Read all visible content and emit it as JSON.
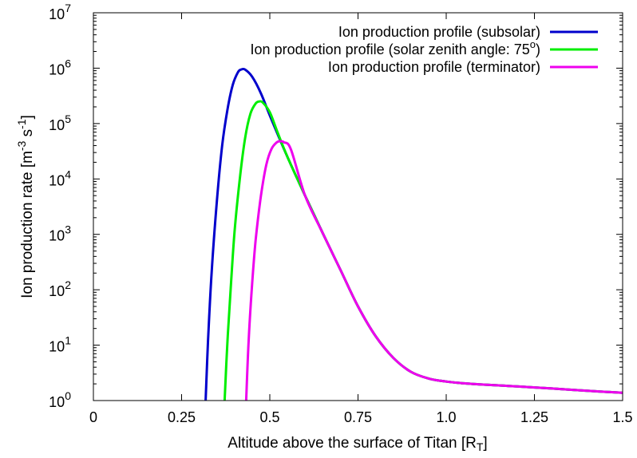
{
  "chart_data": {
    "type": "line",
    "title": "",
    "xlabel": "Altitude above the surface of Titan [R",
    "xlabel_sub": "T",
    "xlabel_end": "]",
    "ylabel": "Ion production rate [m",
    "ylabel_sup1": "-3",
    "ylabel_mid": " s",
    "ylabel_sup2": "-1",
    "ylabel_end": "]",
    "xlim": [
      0,
      1.5
    ],
    "ylim_log10": [
      0,
      7
    ],
    "y_scale": "log",
    "x_ticks": [
      {
        "value": 0,
        "label": "0"
      },
      {
        "value": 0.25,
        "label": "0.25"
      },
      {
        "value": 0.5,
        "label": "0.5"
      },
      {
        "value": 0.75,
        "label": "0.75"
      },
      {
        "value": 1.0,
        "label": "1.0"
      },
      {
        "value": 1.25,
        "label": "1.25"
      },
      {
        "value": 1.5,
        "label": "1.5"
      }
    ],
    "y_ticks": [
      {
        "exp": 0,
        "base": "10",
        "sup": "0"
      },
      {
        "exp": 1,
        "base": "10",
        "sup": "1"
      },
      {
        "exp": 2,
        "base": "10",
        "sup": "2"
      },
      {
        "exp": 3,
        "base": "10",
        "sup": "3"
      },
      {
        "exp": 4,
        "base": "10",
        "sup": "4"
      },
      {
        "exp": 5,
        "base": "10",
        "sup": "5"
      },
      {
        "exp": 6,
        "base": "10",
        "sup": "6"
      },
      {
        "exp": 7,
        "base": "10",
        "sup": "7"
      }
    ],
    "grid": false,
    "legend_position": "top-right",
    "series": [
      {
        "name": "Ion production profile (subsolar)",
        "color": "#0000cc",
        "x": [
          0.318,
          0.325,
          0.335,
          0.35,
          0.365,
          0.38,
          0.395,
          0.41,
          0.42,
          0.43,
          0.45,
          0.475,
          0.5,
          0.55,
          0.6,
          0.65,
          0.7,
          0.75,
          0.8,
          0.85,
          0.9,
          0.95,
          1.0,
          1.05,
          1.1,
          1.2,
          1.3,
          1.4,
          1.5
        ],
        "y": [
          1.0,
          12,
          200,
          4000,
          40000,
          180000,
          500000,
          850000,
          950000,
          940000,
          700000,
          350000,
          140000,
          25000,
          5000,
          1050,
          230,
          50,
          14.5,
          5.9,
          3.3,
          2.5,
          2.2,
          2.05,
          1.95,
          1.8,
          1.65,
          1.5,
          1.38
        ]
      },
      {
        "name": "Ion production profile (solar zenith angle: 75",
        "name_sup": "o",
        "name_end": ")",
        "color": "#00ee00",
        "x": [
          0.372,
          0.38,
          0.39,
          0.4,
          0.415,
          0.43,
          0.445,
          0.46,
          0.47,
          0.48,
          0.5,
          0.52,
          0.55,
          0.6,
          0.65,
          0.7,
          0.75,
          0.8,
          0.85,
          0.9,
          0.95,
          1.0,
          1.05,
          1.1,
          1.2,
          1.3,
          1.4,
          1.5
        ],
        "y": [
          1.0,
          12,
          130,
          1100,
          10000,
          55000,
          150000,
          230000,
          250000,
          240000,
          160000,
          75000,
          25000,
          5000,
          1050,
          230,
          50,
          14.5,
          5.9,
          3.3,
          2.5,
          2.2,
          2.05,
          1.95,
          1.8,
          1.65,
          1.5,
          1.38
        ]
      },
      {
        "name": "Ion production profile (terminator)",
        "color": "#ee00ee",
        "x": [
          0.433,
          0.44,
          0.45,
          0.46,
          0.475,
          0.49,
          0.505,
          0.52,
          0.53,
          0.54,
          0.56,
          0.6,
          0.65,
          0.7,
          0.75,
          0.8,
          0.85,
          0.9,
          0.95,
          1.0,
          1.05,
          1.1,
          1.2,
          1.3,
          1.4,
          1.5
        ],
        "y": [
          1.0,
          12,
          130,
          800,
          5000,
          18000,
          35000,
          46000,
          48000,
          46000,
          34000,
          5000,
          1050,
          230,
          50,
          14.5,
          5.9,
          3.3,
          2.5,
          2.2,
          2.05,
          1.95,
          1.8,
          1.65,
          1.5,
          1.38
        ]
      }
    ]
  }
}
